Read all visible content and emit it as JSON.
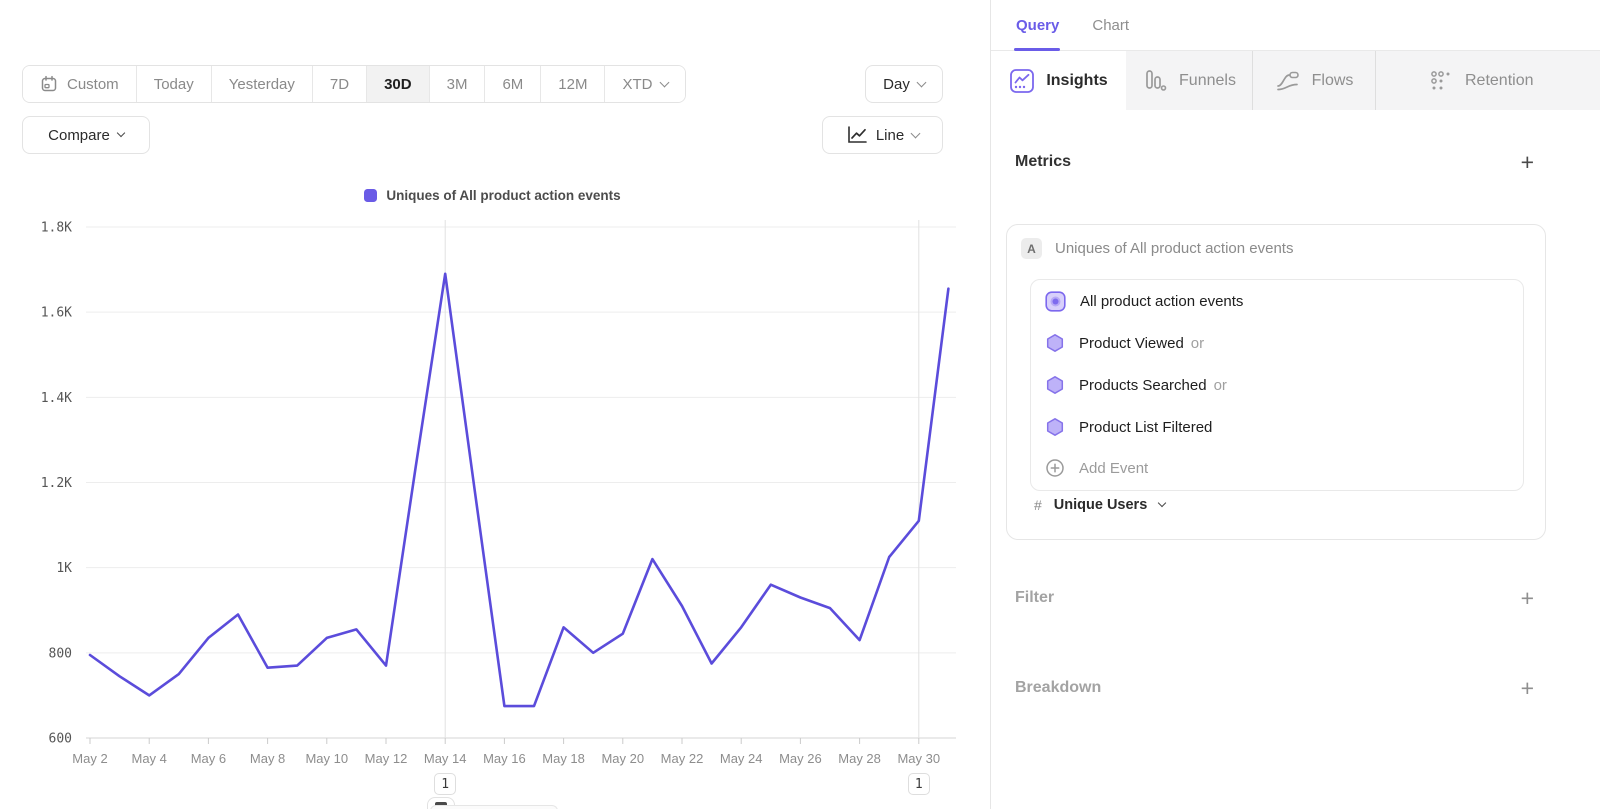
{
  "icons": {
    "plus": "+"
  },
  "toolbar": {
    "ranges": [
      "Custom",
      "Today",
      "Yesterday",
      "7D",
      "30D",
      "3M",
      "6M",
      "12M",
      "XTD"
    ],
    "selected_range": "30D",
    "granularity": "Day",
    "compare_label": "Compare",
    "chart_type": "Line"
  },
  "chart_data": {
    "type": "line",
    "title": "Uniques of All product action events",
    "legend": [
      "Uniques of All product action events"
    ],
    "x": [
      "May 2",
      "May 3",
      "May 4",
      "May 5",
      "May 6",
      "May 7",
      "May 8",
      "May 9",
      "May 10",
      "May 11",
      "May 12",
      "May 13",
      "May 14",
      "May 15",
      "May 16",
      "May 17",
      "May 18",
      "May 19",
      "May 20",
      "May 21",
      "May 22",
      "May 23",
      "May 24",
      "May 25",
      "May 26",
      "May 27",
      "May 28",
      "May 29",
      "May 30",
      "May 31"
    ],
    "values": [
      795,
      745,
      700,
      750,
      835,
      890,
      765,
      770,
      835,
      855,
      770,
      1235,
      1690,
      1180,
      675,
      675,
      860,
      800,
      845,
      1020,
      910,
      775,
      860,
      960,
      930,
      905,
      830,
      1025,
      1110,
      1655
    ],
    "x_tick_labels": [
      "May 2",
      "May 4",
      "May 6",
      "May 8",
      "May 10",
      "May 12",
      "May 14",
      "May 16",
      "May 18",
      "May 20",
      "May 22",
      "May 24",
      "May 26",
      "May 28",
      "May 30"
    ],
    "y_tick_values": [
      1800,
      1600,
      1400,
      1200,
      1000,
      800,
      600
    ],
    "y_tick_labels": [
      "1.8K",
      "1.6K",
      "1.4K",
      "1.2K",
      "1K",
      "800",
      "600"
    ],
    "ylim": [
      600,
      1800
    ],
    "grid": true,
    "line_color": "#5b4cdb",
    "legend_color": "#6a5be6",
    "annotations": [
      {
        "label": "1",
        "x": "May 14",
        "day_index": 12
      },
      {
        "label": "1",
        "x": "May 30",
        "day_index": 28
      }
    ]
  },
  "panel": {
    "tabs": [
      {
        "label": "Query",
        "active": true
      },
      {
        "label": "Chart",
        "active": false
      }
    ],
    "report_tabs": [
      {
        "label": "Insights",
        "active": true
      },
      {
        "label": "Funnels",
        "active": false
      },
      {
        "label": "Flows",
        "active": false
      },
      {
        "label": "Retention",
        "active": false
      }
    ],
    "metrics": {
      "title": "Metrics",
      "formula_label": "A",
      "formula_text": "Uniques of All product action events",
      "events": [
        {
          "name": "All product action events",
          "suffix": ""
        },
        {
          "name": "Product Viewed",
          "suffix": "or"
        },
        {
          "name": "Products Searched",
          "suffix": "or"
        },
        {
          "name": "Product List Filtered",
          "suffix": ""
        }
      ],
      "add_event_label": "Add Event",
      "aggregation": {
        "prefix": "#",
        "label": "Unique Users"
      }
    },
    "sections": [
      {
        "label": "Filter"
      },
      {
        "label": "Breakdown"
      }
    ]
  }
}
